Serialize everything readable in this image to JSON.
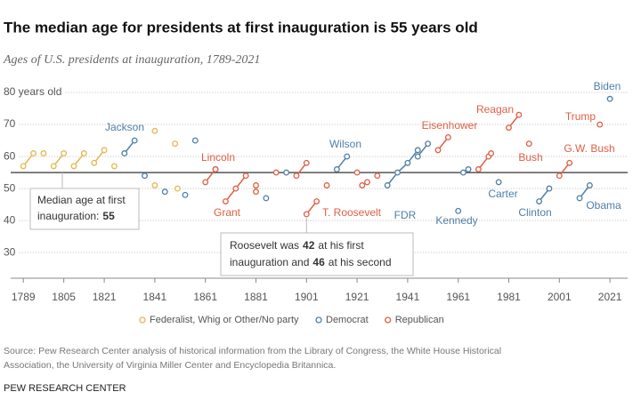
{
  "chart_data": {
    "type": "scatter",
    "title": "The median age for presidents at first inauguration is 55 years old",
    "subtitle": "Ages of U.S. presidents at inauguration, 1789-2021",
    "xlim": [
      1784,
      2028
    ],
    "xticks": [
      1789,
      1805,
      1821,
      1841,
      1861,
      1881,
      1901,
      1921,
      1941,
      1961,
      1981,
      2001,
      2021
    ],
    "ylim": [
      22,
      85
    ],
    "yticks": [
      {
        "value": 80,
        "label": "80 years old"
      },
      70,
      60,
      50,
      40,
      30
    ],
    "grid": true,
    "median": 55,
    "series": [
      {
        "name": "Federalist, Whig or Other/No party",
        "color": "#e3b94f",
        "x": [
          1789,
          1793,
          1797,
          1801,
          1805,
          1809,
          1813,
          1817,
          1821,
          1825,
          1841,
          1841,
          1849,
          1850
        ],
        "values": [
          57,
          61,
          61,
          57,
          61,
          57,
          61,
          58,
          62,
          57,
          68,
          51,
          64,
          50
        ]
      },
      {
        "name": "Democrat",
        "color": "#4f7fa6",
        "x": [
          1829,
          1833,
          1837,
          1845,
          1853,
          1857,
          1865,
          1885,
          1893,
          1913,
          1917,
          1933,
          1937,
          1941,
          1945,
          1945,
          1949,
          1961,
          1963,
          1965,
          1977,
          1993,
          1997,
          2009,
          2013,
          2021
        ],
        "values": [
          61,
          65,
          54,
          49,
          48,
          65,
          56,
          47,
          55,
          56,
          60,
          51,
          55,
          58,
          62,
          60,
          64,
          43,
          55,
          56,
          52,
          46,
          50,
          47,
          51,
          78
        ]
      },
      {
        "name": "Republican",
        "color": "#df5f45",
        "x": [
          1861,
          1865,
          1869,
          1873,
          1877,
          1881,
          1881,
          1889,
          1897,
          1901,
          1901,
          1905,
          1909,
          1921,
          1923,
          1925,
          1929,
          1953,
          1957,
          1969,
          1973,
          1974,
          1981,
          1985,
          1989,
          2001,
          2005,
          2017
        ],
        "values": [
          52,
          56,
          46,
          50,
          54,
          49,
          51,
          55,
          54,
          58,
          42,
          46,
          51,
          55,
          51,
          52,
          54,
          62,
          66,
          56,
          60,
          61,
          69,
          73,
          64,
          54,
          58,
          70
        ]
      }
    ],
    "annotations": [
      "Jackson",
      "Lincoln",
      "Grant",
      "Wilson",
      "T. Roosevelt",
      "FDR",
      "Kennedy",
      "Eisenhower",
      "Reagan",
      "Bush",
      "Carter",
      "Clinton",
      "Trump",
      "G.W. Bush",
      "Obama",
      "Biden"
    ],
    "median_callout": [
      "Median age at first",
      "inauguration:"
    ],
    "roosevelt_callout": [
      "Roosevelt was",
      "at his first",
      "inauguration and",
      "at his second"
    ],
    "source": [
      "Source: Pew Research Center analysis of historical information from the Library of Congress, the White House Historical",
      "Association, the University of Virginia Miller Center and Encyclopedia Britannica."
    ],
    "credit": "PEW RESEARCH CENTER"
  }
}
